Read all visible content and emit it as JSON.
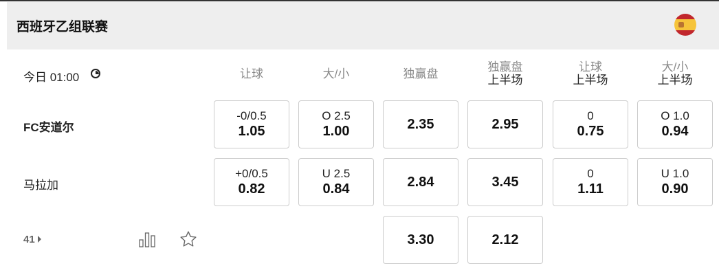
{
  "league": {
    "title": "西班牙乙组联赛",
    "flag_icon": "spain-flag"
  },
  "match": {
    "time": "今日 01:00",
    "more_count": "41"
  },
  "columns": [
    {
      "label": "让球",
      "sub": ""
    },
    {
      "label": "大/小",
      "sub": ""
    },
    {
      "label": "独赢盘",
      "sub": ""
    },
    {
      "label": "独赢盘",
      "sub": "上半场"
    },
    {
      "label": "让球",
      "sub": "上半场"
    },
    {
      "label": "大/小",
      "sub": "上半场"
    }
  ],
  "rows": [
    {
      "team": "FC安道尔",
      "bold": true,
      "cells": [
        {
          "line": "-0/0.5",
          "odds": "1.05"
        },
        {
          "line": "O 2.5",
          "odds": "1.00"
        },
        {
          "line": "",
          "odds": "2.35"
        },
        {
          "line": "",
          "odds": "2.95"
        },
        {
          "line": "0",
          "odds": "0.75"
        },
        {
          "line": "O 1.0",
          "odds": "0.94"
        }
      ]
    },
    {
      "team": "马拉加",
      "bold": false,
      "cells": [
        {
          "line": "+0/0.5",
          "odds": "0.82"
        },
        {
          "line": "U 2.5",
          "odds": "0.84"
        },
        {
          "line": "",
          "odds": "2.84"
        },
        {
          "line": "",
          "odds": "3.45"
        },
        {
          "line": "0",
          "odds": "1.11"
        },
        {
          "line": "U 1.0",
          "odds": "0.90"
        }
      ]
    },
    {
      "team": "",
      "bold": false,
      "cells": [
        null,
        null,
        {
          "line": "",
          "odds": "3.30"
        },
        {
          "line": "",
          "odds": "2.12"
        },
        null,
        null
      ]
    }
  ]
}
